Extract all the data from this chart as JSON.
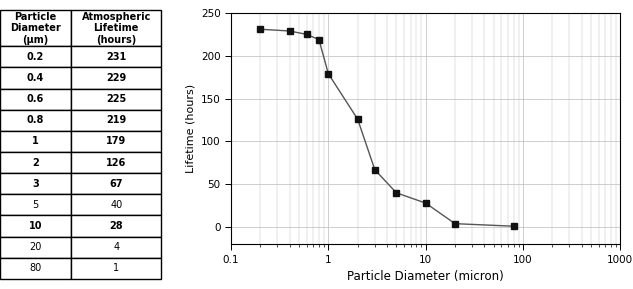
{
  "diameters": [
    0.2,
    0.4,
    0.6,
    0.8,
    1.0,
    2.0,
    3.0,
    5.0,
    10.0,
    20.0,
    80.0
  ],
  "lifetimes": [
    231,
    229,
    225,
    219,
    179,
    126,
    67,
    40,
    28,
    4,
    1
  ],
  "xlabel": "Particle Diameter (micron)",
  "ylabel": "Lifetime (hours)",
  "xlim": [
    0.1,
    1000
  ],
  "ylim": [
    -20,
    250
  ],
  "yticks": [
    0,
    50,
    100,
    150,
    200,
    250
  ],
  "line_color": "#555555",
  "marker_color": "#111111",
  "bg_color": "#ffffff",
  "grid_color": "#bbbbbb",
  "marker_size": 4,
  "line_width": 1.0,
  "table_diameters": [
    "0.2",
    "0.4",
    "0.6",
    "0.8",
    "1",
    "2",
    "3",
    "5",
    "10",
    "20",
    "80"
  ],
  "bold_rows": [
    0,
    1,
    2,
    3,
    4,
    5,
    6,
    8
  ],
  "ylabel_fontsize": 8,
  "xlabel_fontsize": 8.5,
  "tick_fontsize": 7.5,
  "table_fontsize": 7.0
}
